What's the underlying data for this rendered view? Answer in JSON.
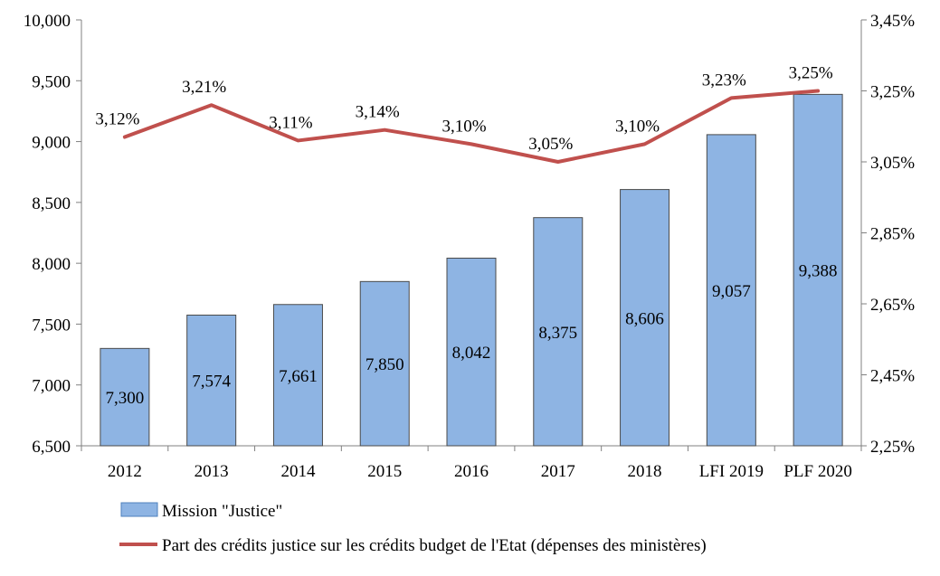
{
  "chart_data": {
    "type": "bar",
    "categories": [
      "2012",
      "2013",
      "2014",
      "2015",
      "2016",
      "2017",
      "2018",
      "LFI 2019",
      "PLF 2020"
    ],
    "series": [
      {
        "name": "Mission \"Justice\"",
        "type": "bar",
        "axis": "left",
        "color": "#8eb4e3",
        "values": [
          7.3,
          7.574,
          7.661,
          7.85,
          8.042,
          8.375,
          8.606,
          9.057,
          9.388
        ],
        "labels": [
          "7,300",
          "7,574",
          "7,661",
          "7,850",
          "8,042",
          "8,375",
          "8,606",
          "9,057",
          "9,388"
        ]
      },
      {
        "name": "Part des crédits justice sur les crédits budget de l'Etat  (dépenses des ministères)",
        "type": "line",
        "axis": "right",
        "color": "#c0504d",
        "values": [
          3.12,
          3.21,
          3.11,
          3.14,
          3.1,
          3.05,
          3.1,
          3.23,
          3.25
        ],
        "labels": [
          "3,12%",
          "3,21%",
          "3,11%",
          "3,14%",
          "3,10%",
          "3,05%",
          "3,10%",
          "3,23%",
          "3,25%"
        ]
      }
    ],
    "left_axis": {
      "ylim": [
        6.5,
        10.0
      ],
      "ticks": [
        6.5,
        7.0,
        7.5,
        8.0,
        8.5,
        9.0,
        9.5,
        10.0
      ],
      "tick_labels": [
        "6,500",
        "7,000",
        "7,500",
        "8,000",
        "8,500",
        "9,000",
        "9,500",
        "10,000"
      ]
    },
    "right_axis": {
      "ylim": [
        2.25,
        3.45
      ],
      "ticks": [
        2.25,
        2.45,
        2.65,
        2.85,
        3.05,
        3.25,
        3.45
      ],
      "tick_labels": [
        "2,25%",
        "2,45%",
        "2,65%",
        "2,85%",
        "3,05%",
        "3,25%",
        "3,45%"
      ]
    },
    "title": "",
    "xlabel": "",
    "ylabel": "",
    "grid": false,
    "legend_position": "bottom"
  }
}
